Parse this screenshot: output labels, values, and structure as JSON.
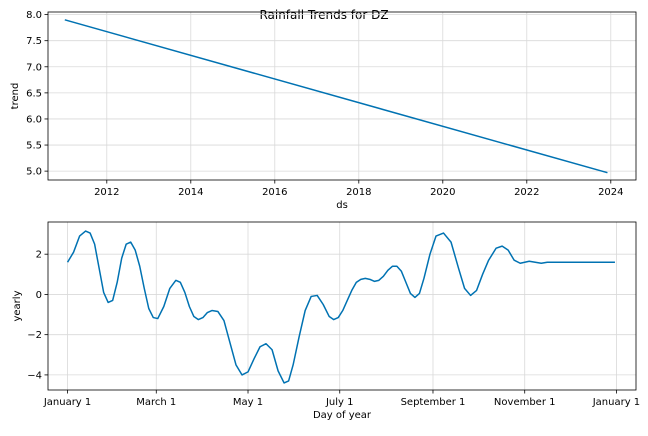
{
  "chart_data": {
    "title": "Rainfall Trends for DZ",
    "line_color": "#0072B2",
    "panels": [
      {
        "type": "line",
        "xlabel": "ds",
        "ylabel": "trend",
        "xlim": [
          2010.6,
          2024.6
        ],
        "ylim": [
          4.83,
          8.05
        ],
        "xticks": [
          2012,
          2014,
          2016,
          2018,
          2020,
          2022,
          2024
        ],
        "xtick_labels": [
          "2012",
          "2014",
          "2016",
          "2018",
          "2020",
          "2022",
          "2024"
        ],
        "yticks": [
          5.0,
          5.5,
          6.0,
          6.5,
          7.0,
          7.5,
          8.0
        ],
        "ytick_labels": [
          "5.0",
          "5.5",
          "6.0",
          "6.5",
          "7.0",
          "7.5",
          "8.0"
        ],
        "grid": true,
        "series": [
          {
            "x": [
              2011.0,
              2023.92
            ],
            "y": [
              7.9,
              4.97
            ]
          }
        ]
      },
      {
        "type": "line",
        "xlabel": "Day of year",
        "ylabel": "yearly",
        "xlim": [
          -13,
          378
        ],
        "ylim": [
          -4.75,
          3.6
        ],
        "xticks": [
          0,
          59,
          120,
          181,
          243,
          304,
          365
        ],
        "xtick_labels": [
          "January 1",
          "March 1",
          "May 1",
          "July 1",
          "September 1",
          "November 1",
          "January 1"
        ],
        "yticks": [
          -4,
          -2,
          0,
          2
        ],
        "ytick_labels": [
          "−4",
          "−2",
          "0",
          "2"
        ],
        "grid": true,
        "series": [
          {
            "x": [
              0,
              4,
              8,
              12,
              15,
              18,
              21,
              24,
              27,
              30,
              33,
              36,
              39,
              42,
              45,
              48,
              51,
              54,
              57,
              60,
              64,
              68,
              72,
              75,
              78,
              81,
              84,
              87,
              90,
              93,
              96,
              100,
              104,
              108,
              112,
              116,
              120,
              124,
              128,
              132,
              136,
              140,
              144,
              147,
              150,
              154,
              158,
              162,
              166,
              170,
              174,
              177,
              180,
              183,
              186,
              189,
              192,
              195,
              198,
              201,
              204,
              207,
              210,
              213,
              216,
              219,
              222,
              225,
              228,
              231,
              234,
              237,
              241,
              245,
              250,
              255,
              260,
              264,
              268,
              272,
              276,
              280,
              285,
              289,
              293,
              297,
              301,
              304,
              307,
              311,
              315,
              319,
              322,
              325,
              329,
              333,
              337,
              341,
              345,
              349,
              353,
              357,
              361,
              364
            ],
            "y": [
              1.6,
              2.1,
              2.9,
              3.15,
              3.05,
              2.5,
              1.3,
              0.1,
              -0.4,
              -0.3,
              0.6,
              1.8,
              2.5,
              2.6,
              2.2,
              1.4,
              0.3,
              -0.7,
              -1.15,
              -1.2,
              -0.6,
              0.3,
              0.7,
              0.6,
              0.1,
              -0.6,
              -1.1,
              -1.25,
              -1.15,
              -0.9,
              -0.8,
              -0.85,
              -1.3,
              -2.4,
              -3.5,
              -4.0,
              -3.85,
              -3.2,
              -2.6,
              -2.45,
              -2.75,
              -3.8,
              -4.4,
              -4.3,
              -3.5,
              -2.1,
              -0.8,
              -0.1,
              -0.05,
              -0.5,
              -1.1,
              -1.25,
              -1.15,
              -0.8,
              -0.3,
              0.2,
              0.6,
              0.75,
              0.8,
              0.75,
              0.65,
              0.7,
              0.9,
              1.2,
              1.4,
              1.4,
              1.15,
              0.6,
              0.05,
              -0.15,
              0.05,
              0.8,
              2.0,
              2.9,
              3.05,
              2.6,
              1.3,
              0.3,
              -0.05,
              0.2,
              1.0,
              1.7,
              2.3,
              2.4,
              2.2,
              1.7,
              1.55,
              1.6,
              1.65,
              1.6,
              1.55,
              1.6,
              1.6,
              1.6,
              1.6,
              1.6,
              1.6,
              1.6,
              1.6,
              1.6,
              1.6,
              1.6,
              1.6,
              1.6
            ],
            "x_end": 364
          }
        ]
      }
    ]
  }
}
